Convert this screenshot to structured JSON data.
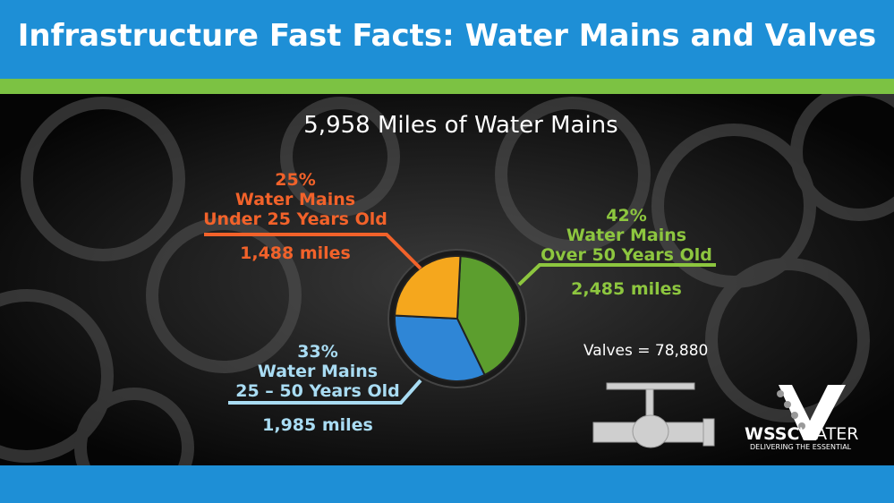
{
  "header": {
    "title": "Infrastructure Fast Facts: Water Mains and Valves"
  },
  "chart_data": {
    "type": "pie",
    "title": "5,958 Miles of Water Mains",
    "categories": [
      "Water Mains\nOver 50 Years Old",
      "Water Mains\n25 – 50 Years Old",
      "Water Mains\nUnder 25 Years Old"
    ],
    "values": [
      42,
      33,
      25
    ],
    "value_labels": [
      "42%",
      "33%",
      "25%"
    ],
    "colors": [
      "#5c9e2e",
      "#2f86d6",
      "#f5a71d"
    ],
    "label_colors": [
      "#8dc63f",
      "#a9dcf3",
      "#f2622a"
    ],
    "miles": [
      {
        "value": 2485,
        "label": "2,485 miles"
      },
      {
        "value": 1985,
        "label": "1,985 miles"
      },
      {
        "value": 1488,
        "label": "1,488 miles"
      }
    ]
  },
  "valves": {
    "label": "Valves = 78,880"
  },
  "logo": {
    "name_bold": "WSSC",
    "name": "WATER",
    "tagline": "DELIVERING THE ESSENTIAL"
  }
}
